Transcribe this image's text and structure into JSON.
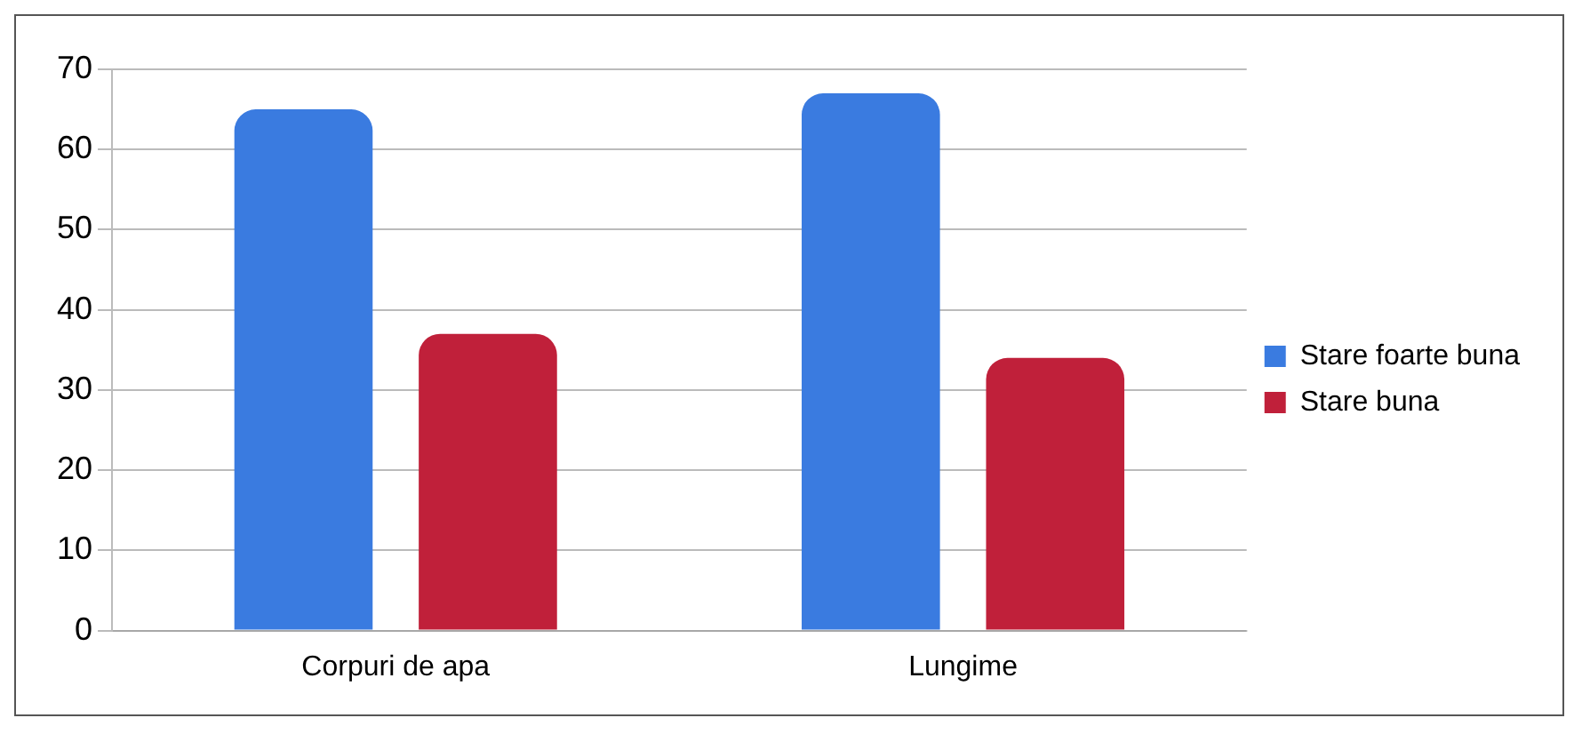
{
  "chart_data": {
    "type": "bar",
    "categories": [
      "Corpuri de apa",
      "Lungime"
    ],
    "series": [
      {
        "name": "Stare foarte buna",
        "color": "#3a7be0",
        "values": [
          65,
          67
        ]
      },
      {
        "name": "Stare buna",
        "color": "#c0203a",
        "values": [
          37,
          34
        ]
      }
    ],
    "ylim": [
      0,
      70
    ],
    "yticks": [
      0,
      10,
      20,
      30,
      40,
      50,
      60,
      70
    ],
    "grid": "y",
    "legend": "right"
  }
}
